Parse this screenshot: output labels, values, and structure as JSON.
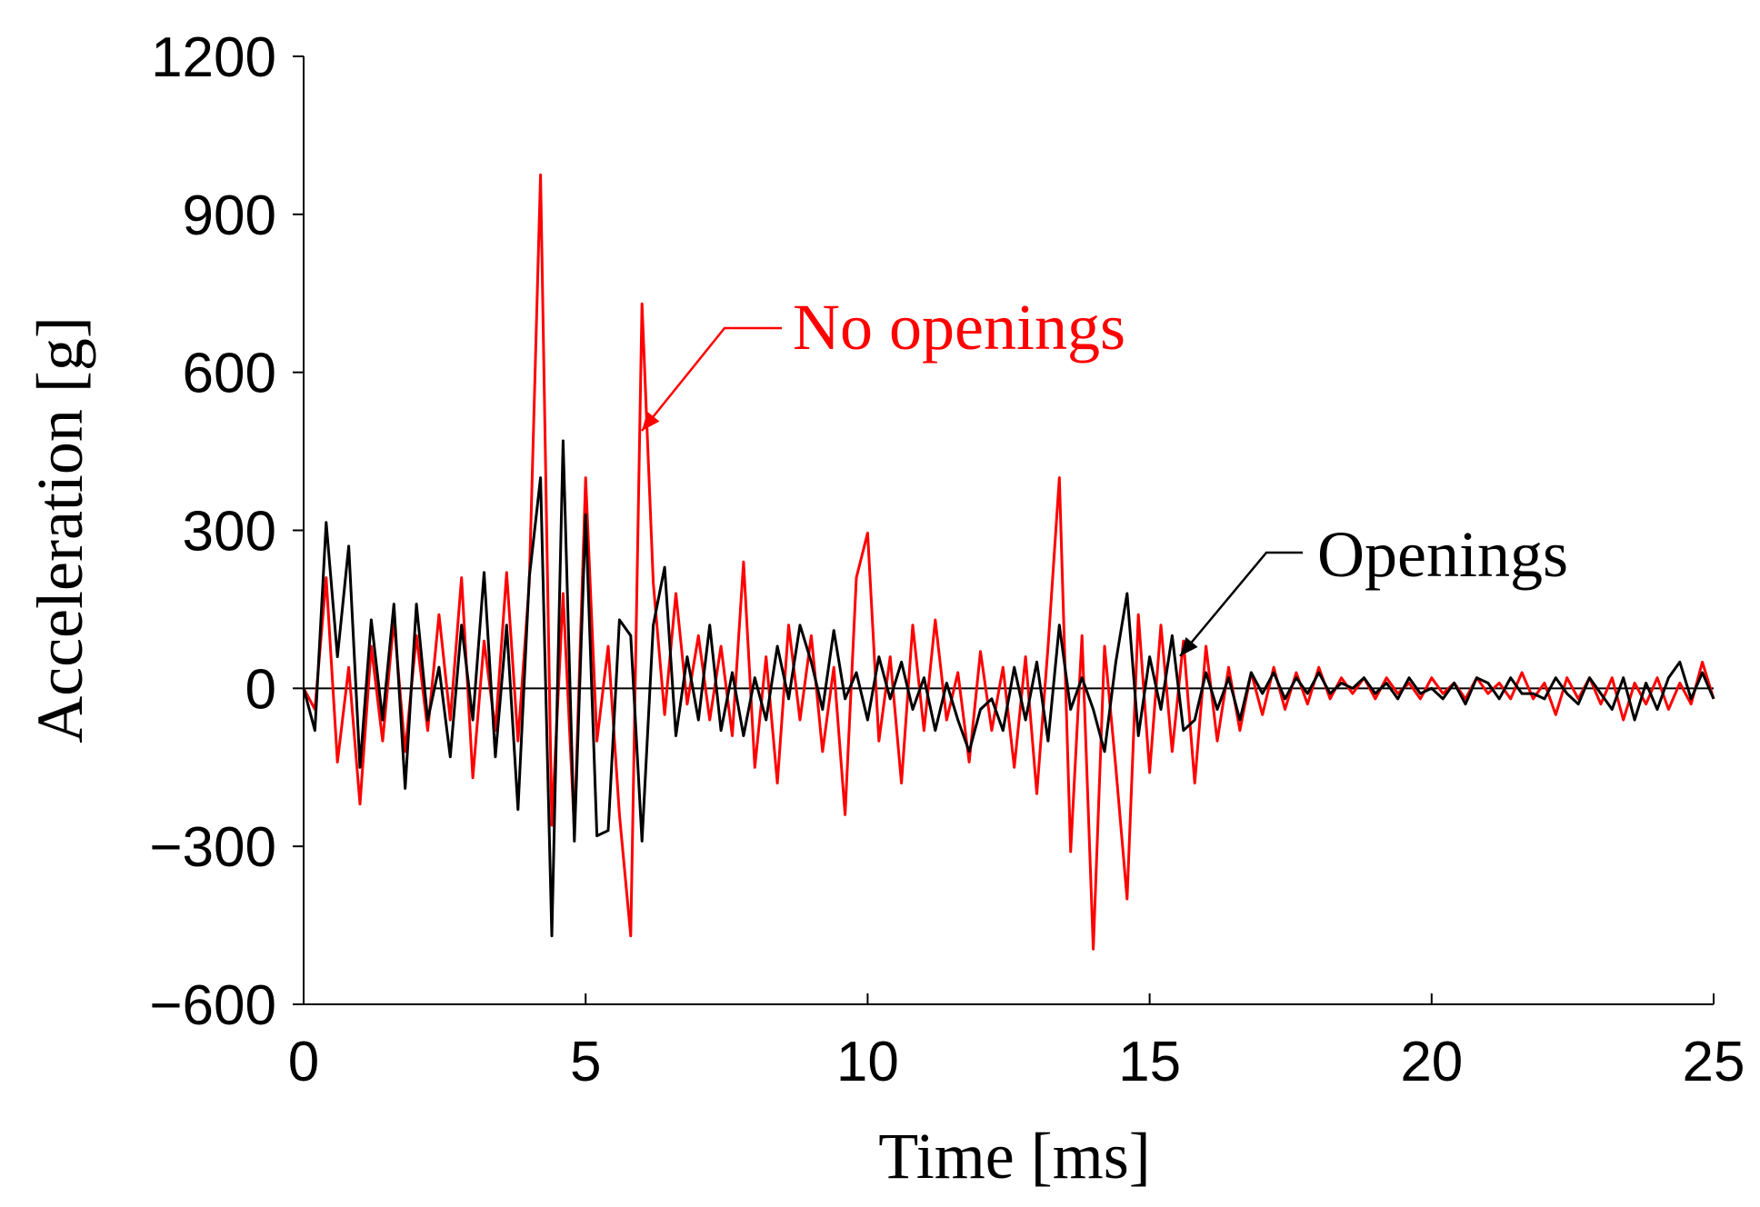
{
  "chart_data": {
    "type": "line",
    "xlabel": "Time [ms]",
    "ylabel": "Acceleration [g]",
    "annotations": [
      "No openings",
      "Openings"
    ],
    "x": [
      0,
      0.2,
      0.4,
      0.6,
      0.8,
      1,
      1.2,
      1.4,
      1.6,
      1.8,
      2,
      2.2,
      2.4,
      2.6,
      2.8,
      3,
      3.2,
      3.4,
      3.6,
      3.8,
      4,
      4.2,
      4.4,
      4.6,
      4.8,
      5,
      5.2,
      5.4,
      5.6,
      5.8,
      6,
      6.2,
      6.4,
      6.6,
      6.8,
      7,
      7.2,
      7.4,
      7.6,
      7.8,
      8,
      8.2,
      8.4,
      8.6,
      8.8,
      9,
      9.2,
      9.4,
      9.6,
      9.8,
      10,
      10.2,
      10.4,
      10.6,
      10.8,
      11,
      11.2,
      11.4,
      11.6,
      11.8,
      12,
      12.2,
      12.4,
      12.6,
      12.8,
      13,
      13.2,
      13.4,
      13.6,
      13.8,
      14,
      14.2,
      14.4,
      14.6,
      14.8,
      15,
      15.2,
      15.4,
      15.6,
      15.8,
      16,
      16.2,
      16.4,
      16.6,
      16.8,
      17,
      17.2,
      17.4,
      17.6,
      17.8,
      18,
      18.2,
      18.4,
      18.6,
      18.8,
      19,
      19.2,
      19.4,
      19.6,
      19.8,
      20,
      20.2,
      20.4,
      20.6,
      20.8,
      21,
      21.2,
      21.4,
      21.6,
      21.8,
      22,
      22.2,
      22.4,
      22.6,
      22.8,
      23,
      23.2,
      23.4,
      23.6,
      23.8,
      24,
      24.2,
      24.4,
      24.6,
      24.8,
      25
    ],
    "series": [
      {
        "name": "No openings",
        "color": "#ff0000",
        "values": [
          0,
          -40,
          210,
          -140,
          40,
          -220,
          80,
          -100,
          130,
          -120,
          100,
          -80,
          140,
          -60,
          210,
          -170,
          90,
          -80,
          220,
          -100,
          200,
          975,
          -260,
          180,
          -270,
          400,
          -100,
          80,
          -240,
          -470,
          730,
          200,
          -50,
          180,
          -30,
          100,
          -60,
          80,
          -90,
          240,
          -150,
          60,
          -180,
          120,
          -60,
          100,
          -120,
          40,
          -240,
          210,
          295,
          -100,
          60,
          -180,
          120,
          -80,
          130,
          -60,
          30,
          -140,
          70,
          -80,
          40,
          -150,
          60,
          -200,
          80,
          400,
          -310,
          100,
          -495,
          80,
          -150,
          -400,
          140,
          -160,
          120,
          -120,
          90,
          -180,
          80,
          -100,
          40,
          -80,
          30,
          -50,
          40,
          -40,
          30,
          -30,
          40,
          -20,
          20,
          -10,
          20,
          -20,
          20,
          -10,
          10,
          -20,
          20,
          -10,
          10,
          -20,
          20,
          -10,
          10,
          -20,
          30,
          -20,
          10,
          -50,
          20,
          -20,
          20,
          -30,
          20,
          -60,
          10,
          -30,
          20,
          -40,
          10,
          -30,
          50,
          -20
        ]
      },
      {
        "name": "Openings",
        "color": "#000000",
        "values": [
          0,
          -80,
          315,
          60,
          270,
          -150,
          130,
          -60,
          160,
          -190,
          160,
          -60,
          40,
          -130,
          120,
          -60,
          220,
          -130,
          120,
          -230,
          210,
          400,
          -470,
          470,
          -290,
          330,
          -280,
          -270,
          130,
          100,
          -290,
          120,
          230,
          -90,
          60,
          -60,
          120,
          -80,
          30,
          -90,
          20,
          -60,
          80,
          -20,
          120,
          50,
          -40,
          110,
          -20,
          30,
          -60,
          60,
          -20,
          50,
          -40,
          20,
          -80,
          10,
          -60,
          -120,
          -40,
          -20,
          -80,
          40,
          -60,
          50,
          -100,
          120,
          -40,
          20,
          -40,
          -120,
          50,
          180,
          -90,
          60,
          -40,
          100,
          -80,
          -60,
          30,
          -40,
          20,
          -60,
          30,
          -10,
          30,
          -20,
          20,
          -10,
          30,
          -10,
          10,
          0,
          20,
          -10,
          10,
          -20,
          20,
          -10,
          0,
          -20,
          10,
          -30,
          20,
          10,
          -20,
          20,
          -10,
          -10,
          -20,
          20,
          -10,
          -30,
          20,
          -10,
          -40,
          20,
          -60,
          10,
          -40,
          20,
          50,
          -20,
          30,
          -20
        ]
      }
    ],
    "xlim": [
      0,
      25
    ],
    "xticks": [
      0,
      5,
      10,
      15,
      20,
      25
    ],
    "ylim": [
      -600,
      1200
    ],
    "yticks": [
      {
        "value": -600,
        "label": "−600"
      },
      {
        "value": -300,
        "label": "−300"
      },
      0,
      300,
      600,
      900,
      1200
    ],
    "grid": false
  }
}
